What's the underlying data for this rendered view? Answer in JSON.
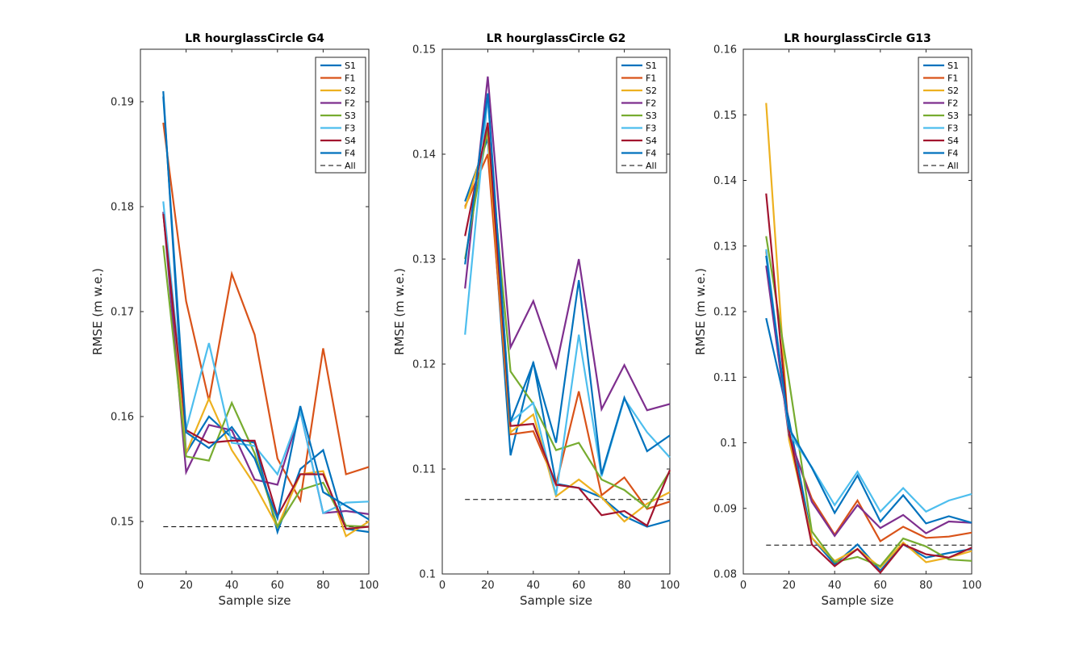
{
  "chart_data": [
    {
      "type": "line",
      "title": "LR hourglassCircle G4",
      "xlabel": "Sample size",
      "ylabel": "RMSE (m w.e.)",
      "xlim": [
        0,
        100
      ],
      "ylim": [
        0.145,
        0.195
      ],
      "xticks": [
        0,
        20,
        40,
        60,
        80,
        100
      ],
      "yticks": [
        0.15,
        0.16,
        0.17,
        0.18,
        0.19
      ],
      "ytick_labels": [
        "0.15",
        "0.16",
        "0.17",
        "0.18",
        "0.19"
      ],
      "x": [
        10,
        20,
        30,
        40,
        50,
        60,
        70,
        80,
        90,
        100
      ],
      "series": [
        {
          "name": "S1",
          "values": [
            0.191,
            0.1565,
            0.16,
            0.158,
            0.1575,
            0.149,
            0.155,
            0.1568,
            0.1493,
            0.149
          ]
        },
        {
          "name": "F1",
          "values": [
            0.188,
            0.171,
            0.1615,
            0.1736,
            0.1678,
            0.156,
            0.152,
            0.1665,
            0.1545,
            0.1552
          ]
        },
        {
          "name": "S2",
          "values": [
            0.1795,
            0.1565,
            0.1617,
            0.1568,
            0.1535,
            0.1495,
            0.1545,
            0.1548,
            0.1486,
            0.15
          ]
        },
        {
          "name": "F2",
          "values": [
            0.1795,
            0.1547,
            0.1592,
            0.1587,
            0.154,
            0.1535,
            0.1605,
            0.1508,
            0.151,
            0.1507
          ]
        },
        {
          "name": "S3",
          "values": [
            0.1763,
            0.1562,
            0.1558,
            0.1613,
            0.1565,
            0.1495,
            0.153,
            0.1537,
            0.1496,
            0.1495
          ]
        },
        {
          "name": "F3",
          "values": [
            0.1805,
            0.1588,
            0.167,
            0.1575,
            0.1572,
            0.1545,
            0.1605,
            0.1508,
            0.1518,
            0.1519
          ]
        },
        {
          "name": "S4",
          "values": [
            0.1793,
            0.1587,
            0.1575,
            0.1577,
            0.1577,
            0.1505,
            0.1545,
            0.1545,
            0.1493,
            0.1495
          ]
        },
        {
          "name": "F4",
          "values": [
            0.1905,
            0.1585,
            0.157,
            0.159,
            0.156,
            0.1503,
            0.161,
            0.1528,
            0.1515,
            0.1502
          ]
        }
      ],
      "reference": {
        "name": "All",
        "value": 0.1495
      },
      "legend": "top-right"
    },
    {
      "type": "line",
      "title": "LR hourglassCircle G2",
      "xlabel": "Sample size",
      "ylabel": "RMSE (m w.e.)",
      "xlim": [
        0,
        100
      ],
      "ylim": [
        0.1,
        0.15
      ],
      "xticks": [
        0,
        20,
        40,
        60,
        80,
        100
      ],
      "yticks": [
        0.1,
        0.11,
        0.12,
        0.13,
        0.14,
        0.15
      ],
      "ytick_labels": [
        "0.1",
        "0.11",
        "0.12",
        "0.13",
        "0.14",
        "0.15"
      ],
      "x": [
        10,
        20,
        30,
        40,
        50,
        60,
        70,
        80,
        90,
        100
      ],
      "series": [
        {
          "name": "S1",
          "values": [
            0.1355,
            0.1415,
            0.1113,
            0.1202,
            0.1086,
            0.1082,
            0.1073,
            0.1055,
            0.1045,
            0.1051
          ]
        },
        {
          "name": "F1",
          "values": [
            0.135,
            0.14,
            0.1133,
            0.1136,
            0.1085,
            0.1174,
            0.1075,
            0.1092,
            0.1062,
            0.1069
          ]
        },
        {
          "name": "S2",
          "values": [
            0.1348,
            0.142,
            0.1135,
            0.1152,
            0.1074,
            0.109,
            0.1073,
            0.105,
            0.1067,
            0.1078
          ]
        },
        {
          "name": "F2",
          "values": [
            0.1272,
            0.1474,
            0.1216,
            0.126,
            0.1197,
            0.13,
            0.1157,
            0.1199,
            0.1156,
            0.1162
          ]
        },
        {
          "name": "S3",
          "values": [
            0.13,
            0.1425,
            0.1193,
            0.1162,
            0.1118,
            0.1125,
            0.109,
            0.108,
            0.1063,
            0.1098
          ]
        },
        {
          "name": "F3",
          "values": [
            0.1228,
            0.1455,
            0.1145,
            0.1163,
            0.1075,
            0.1228,
            0.1093,
            0.1167,
            0.1135,
            0.1111
          ]
        },
        {
          "name": "S4",
          "values": [
            0.1322,
            0.143,
            0.1141,
            0.1143,
            0.1085,
            0.1082,
            0.1056,
            0.106,
            0.1046,
            0.1099
          ]
        },
        {
          "name": "F4",
          "values": [
            0.1295,
            0.1458,
            0.1145,
            0.1201,
            0.1125,
            0.128,
            0.1095,
            0.1168,
            0.1117,
            0.1132
          ]
        }
      ],
      "reference": {
        "name": "All",
        "value": 0.1071
      },
      "legend": "top-right"
    },
    {
      "type": "line",
      "title": "LR hourglassCircle G13",
      "xlabel": "Sample size",
      "ylabel": "RMSE (m w.e.)",
      "xlim": [
        0,
        100
      ],
      "ylim": [
        0.08,
        0.16
      ],
      "xticks": [
        0,
        20,
        40,
        60,
        80,
        100
      ],
      "yticks": [
        0.08,
        0.09,
        0.1,
        0.11,
        0.12,
        0.13,
        0.14,
        0.15,
        0.16
      ],
      "ytick_labels": [
        "0.08",
        "0.09",
        "0.1",
        "0.11",
        "0.12",
        "0.13",
        "0.14",
        "0.15",
        "0.16"
      ],
      "x": [
        10,
        20,
        30,
        40,
        50,
        60,
        70,
        80,
        90,
        100
      ],
      "series": [
        {
          "name": "S1",
          "values": [
            0.119,
            0.1035,
            0.0855,
            0.0815,
            0.0845,
            0.0805,
            0.0845,
            0.0825,
            0.0832,
            0.0838
          ]
        },
        {
          "name": "F1",
          "values": [
            0.1292,
            0.1008,
            0.0915,
            0.086,
            0.0912,
            0.085,
            0.0872,
            0.0855,
            0.0857,
            0.0863
          ]
        },
        {
          "name": "S2",
          "values": [
            0.1518,
            0.1005,
            0.0855,
            0.082,
            0.0838,
            0.081,
            0.0848,
            0.0818,
            0.0825,
            0.0835
          ]
        },
        {
          "name": "F2",
          "values": [
            0.127,
            0.1012,
            0.091,
            0.0858,
            0.0905,
            0.087,
            0.089,
            0.0862,
            0.088,
            0.0878
          ]
        },
        {
          "name": "S3",
          "values": [
            0.1315,
            0.1095,
            0.0865,
            0.0818,
            0.0826,
            0.0812,
            0.0854,
            0.0842,
            0.0822,
            0.082
          ]
        },
        {
          "name": "F3",
          "values": [
            0.1295,
            0.1015,
            0.0963,
            0.0905,
            0.0956,
            0.0895,
            0.0931,
            0.0895,
            0.0912,
            0.0922
          ]
        },
        {
          "name": "S4",
          "values": [
            0.138,
            0.1018,
            0.0845,
            0.0812,
            0.0838,
            0.0802,
            0.0845,
            0.083,
            0.0825,
            0.084
          ]
        },
        {
          "name": "F4",
          "values": [
            0.1285,
            0.1022,
            0.0962,
            0.0893,
            0.095,
            0.088,
            0.092,
            0.0877,
            0.0888,
            0.0878
          ]
        }
      ],
      "reference": {
        "name": "All",
        "value": 0.0844
      },
      "legend": "top-right"
    }
  ],
  "series_colors": {
    "S1": "#0072bd",
    "F1": "#d95319",
    "S2": "#edb120",
    "F2": "#7e2f8e",
    "S3": "#77ac30",
    "F3": "#4dbeee",
    "S4": "#a2142f",
    "F4": "#0072bd"
  },
  "reference_color": "#000000"
}
